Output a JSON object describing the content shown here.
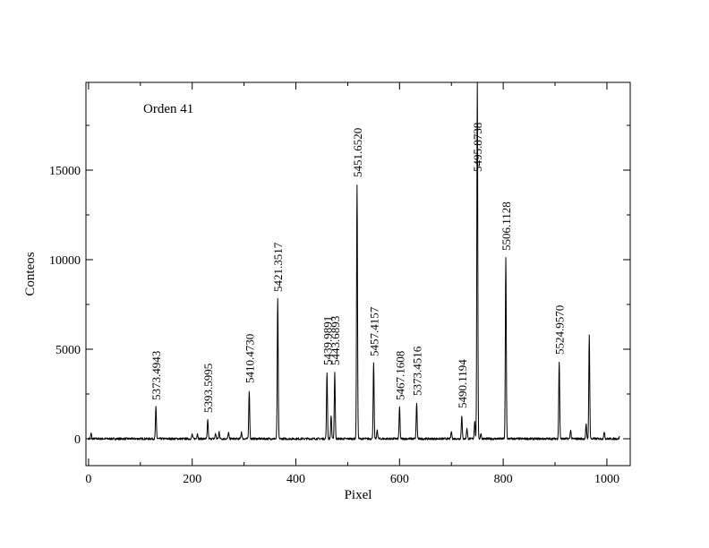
{
  "chart_data": {
    "type": "line",
    "title": "",
    "annotation": "Orden 41",
    "xlabel": "Pixel",
    "ylabel": "Conteos",
    "xlim": [
      -5,
      1045
    ],
    "ylim": [
      -1500,
      19900
    ],
    "x_ticks": [
      0,
      200,
      400,
      600,
      800,
      1000
    ],
    "y_ticks": [
      0,
      5000,
      10000,
      15000
    ],
    "grid": false,
    "baseline": 0,
    "series": [
      {
        "peaks": [
          {
            "x": 5,
            "y": 300
          },
          {
            "x": 130,
            "y": 1750
          },
          {
            "x": 200,
            "y": 250
          },
          {
            "x": 210,
            "y": 300
          },
          {
            "x": 230,
            "y": 1050
          },
          {
            "x": 245,
            "y": 300
          },
          {
            "x": 252,
            "y": 400
          },
          {
            "x": 270,
            "y": 350
          },
          {
            "x": 295,
            "y": 400
          },
          {
            "x": 310,
            "y": 2700
          },
          {
            "x": 365,
            "y": 7800
          },
          {
            "x": 460,
            "y": 3700
          },
          {
            "x": 468,
            "y": 1300
          },
          {
            "x": 475,
            "y": 3700
          },
          {
            "x": 518,
            "y": 14200
          },
          {
            "x": 550,
            "y": 4200
          },
          {
            "x": 557,
            "y": 500
          },
          {
            "x": 600,
            "y": 1750
          },
          {
            "x": 633,
            "y": 2000
          },
          {
            "x": 700,
            "y": 400
          },
          {
            "x": 720,
            "y": 1300
          },
          {
            "x": 730,
            "y": 600
          },
          {
            "x": 745,
            "y": 1000
          },
          {
            "x": 750,
            "y": 19900
          },
          {
            "x": 757,
            "y": 300
          },
          {
            "x": 805,
            "y": 10100
          },
          {
            "x": 908,
            "y": 4300
          },
          {
            "x": 930,
            "y": 500
          },
          {
            "x": 960,
            "y": 800
          },
          {
            "x": 966,
            "y": 5800
          },
          {
            "x": 995,
            "y": 400
          },
          {
            "x": 1025,
            "y": 200
          }
        ]
      }
    ],
    "line_labels": [
      {
        "x": 130,
        "y": 1750,
        "text": "5373.4943"
      },
      {
        "x": 230,
        "y": 1050,
        "text": "5393.5995"
      },
      {
        "x": 310,
        "y": 2700,
        "text": "5410.4730"
      },
      {
        "x": 365,
        "y": 7800,
        "text": "5421.3517"
      },
      {
        "x": 460,
        "y": 3700,
        "text": "5439.9891"
      },
      {
        "x": 475,
        "y": 3700,
        "text": "5443.6893"
      },
      {
        "x": 518,
        "y": 14200,
        "text": "5451.6520"
      },
      {
        "x": 550,
        "y": 4200,
        "text": "5457.4157"
      },
      {
        "x": 600,
        "y": 1750,
        "text": "5467.1608"
      },
      {
        "x": 633,
        "y": 2000,
        "text": "5373.4516"
      },
      {
        "x": 720,
        "y": 1300,
        "text": "5490.1194"
      },
      {
        "x": 750,
        "y": 14500,
        "text": "5495.8738"
      },
      {
        "x": 805,
        "y": 10100,
        "text": "5506.1128"
      },
      {
        "x": 908,
        "y": 4300,
        "text": "5524.9570"
      }
    ]
  }
}
